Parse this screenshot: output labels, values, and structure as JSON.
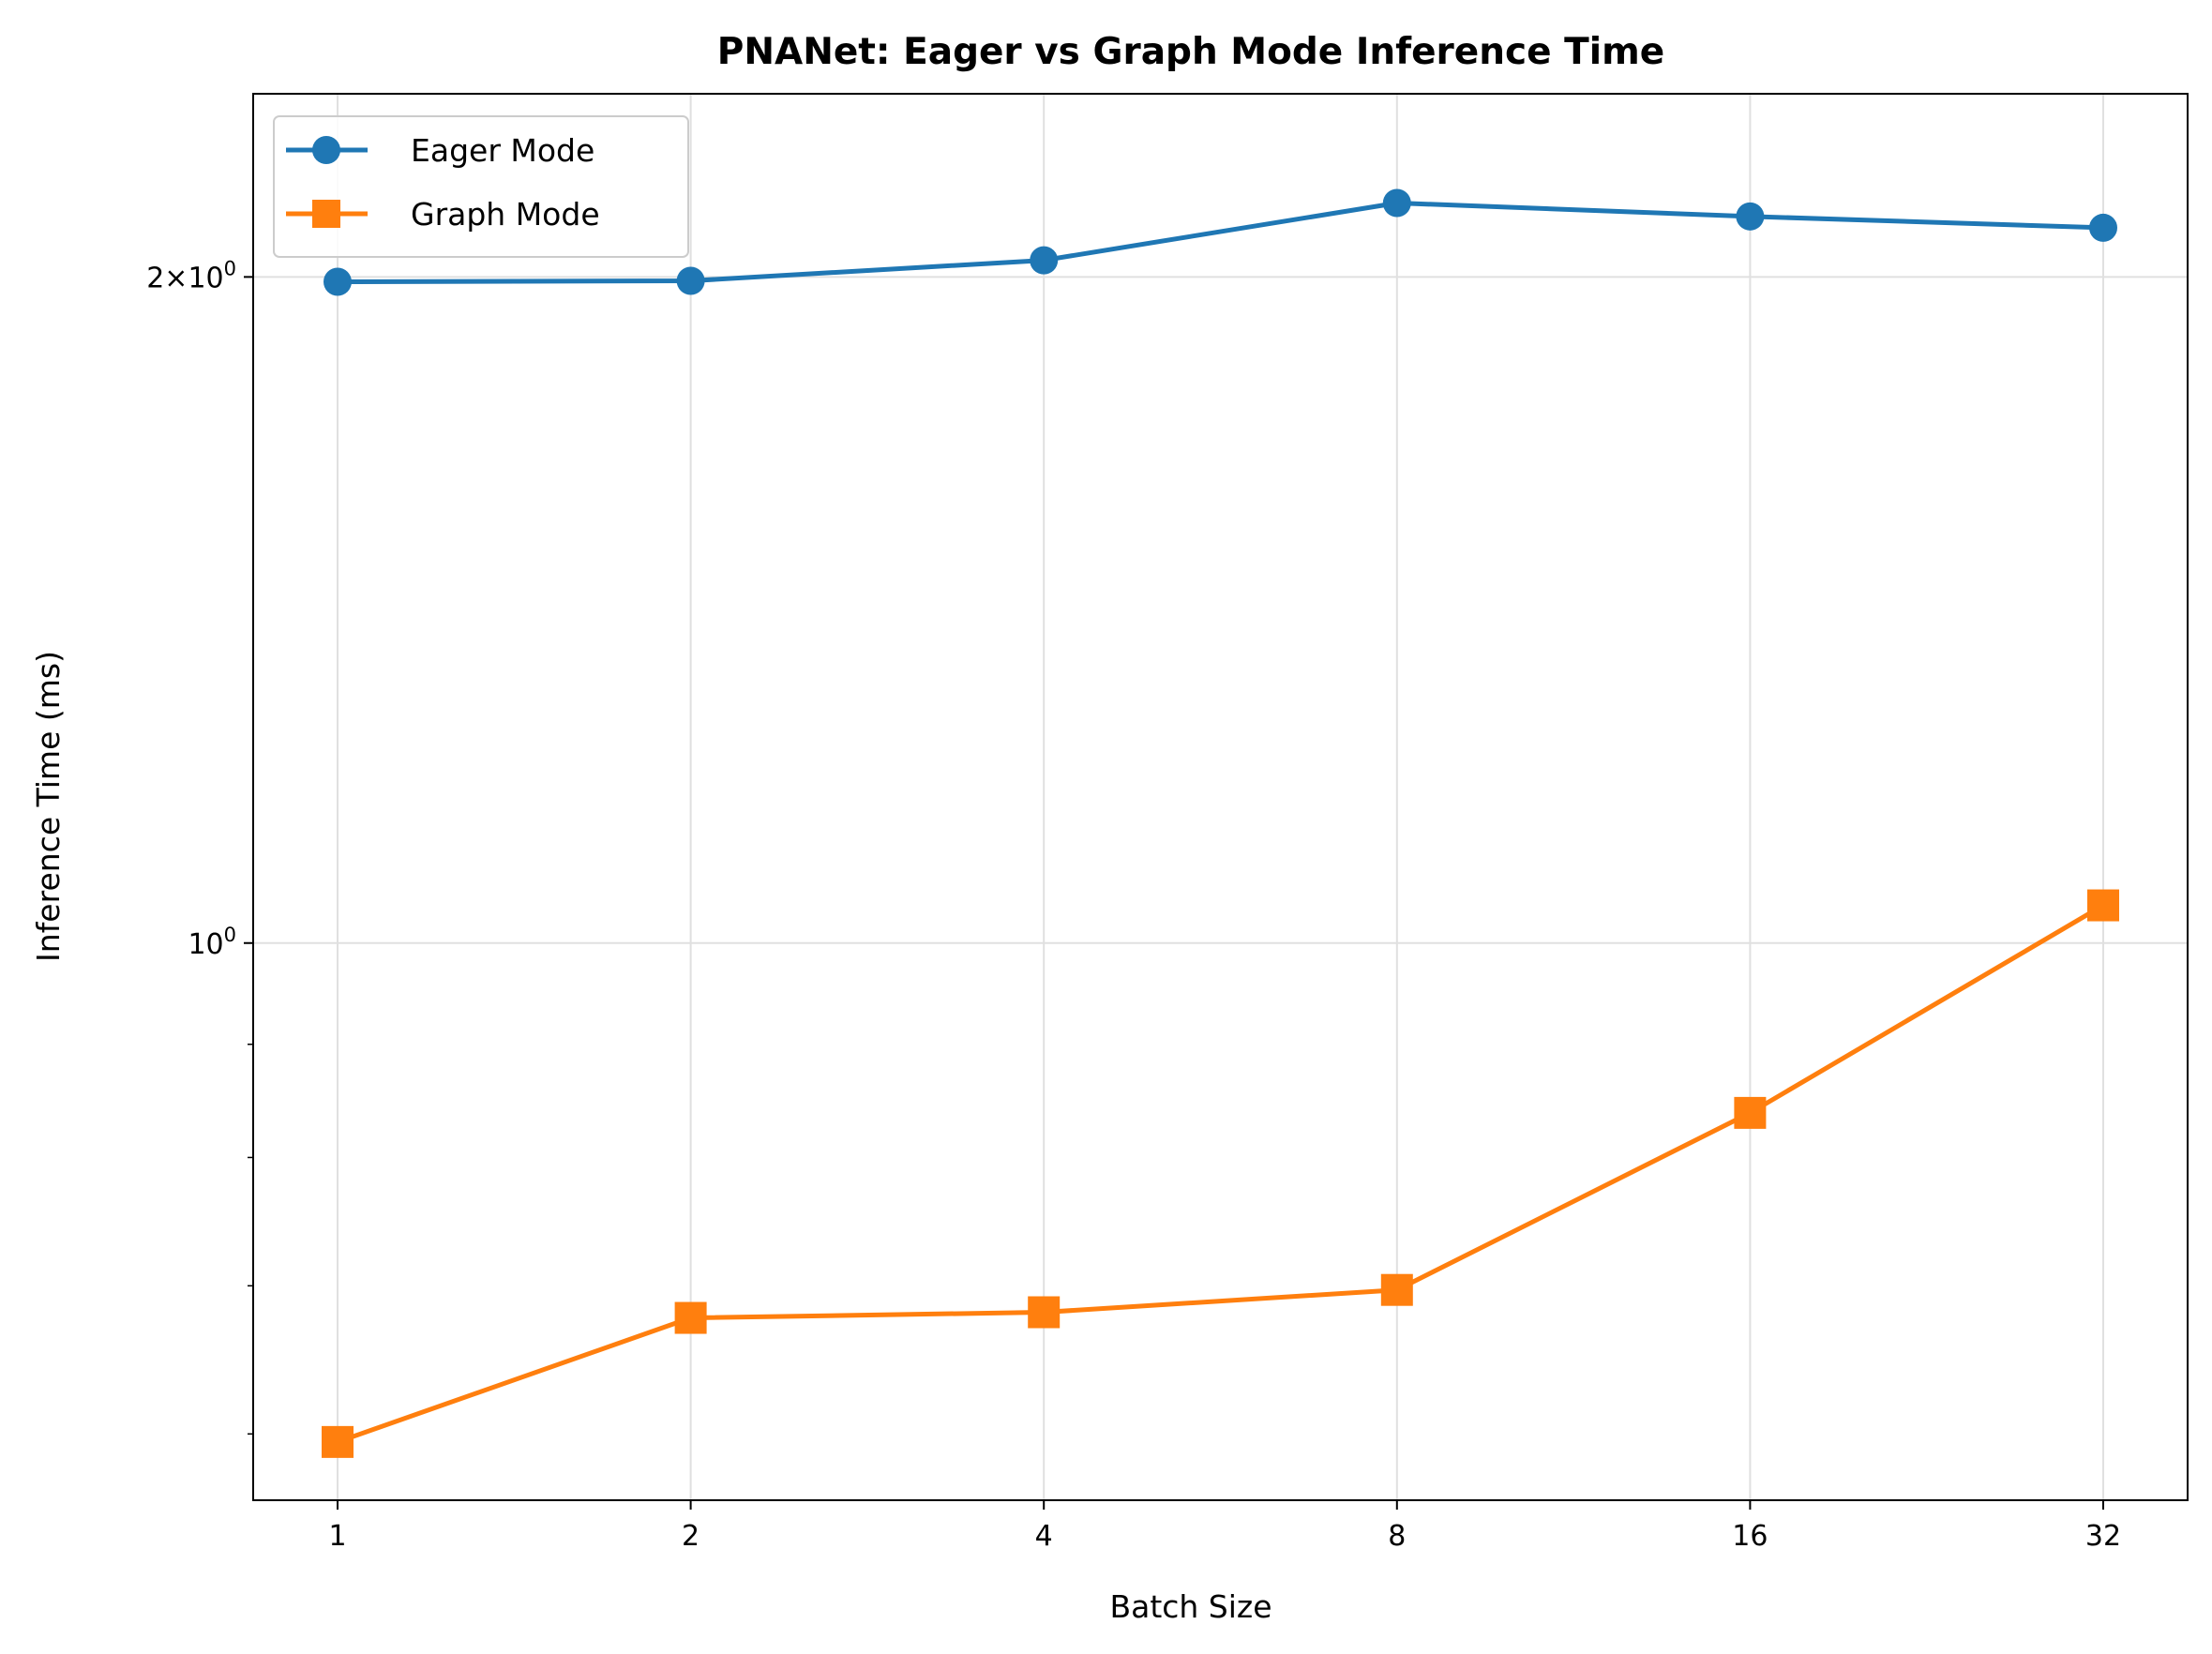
{
  "chart_data": {
    "type": "line",
    "title": "PNANet: Eager vs Graph Mode Inference Time",
    "xlabel": "Batch Size",
    "ylabel": "Inference Time (ms)",
    "x_scale": "log2",
    "y_scale": "log",
    "categories": [
      "1",
      "2",
      "4",
      "8",
      "16",
      "32"
    ],
    "x": [
      1,
      2,
      4,
      8,
      16,
      32
    ],
    "ylim": [
      0.56,
      2.42
    ],
    "y_ticks": [
      {
        "value": 1,
        "base": "10",
        "exp": "0"
      },
      {
        "value": 2,
        "coef": "2",
        "base": "10",
        "exp": "0"
      }
    ],
    "grid": true,
    "legend_position": "top-left",
    "series": [
      {
        "name": "Eager Mode",
        "color": "#1f77b4",
        "marker": "circle",
        "values": [
          1.99,
          1.992,
          2.035,
          2.16,
          2.13,
          2.105
        ]
      },
      {
        "name": "Graph Mode",
        "color": "#ff7f0e",
        "marker": "square",
        "values": [
          0.595,
          0.677,
          0.681,
          0.697,
          0.838,
          1.04
        ]
      }
    ]
  }
}
